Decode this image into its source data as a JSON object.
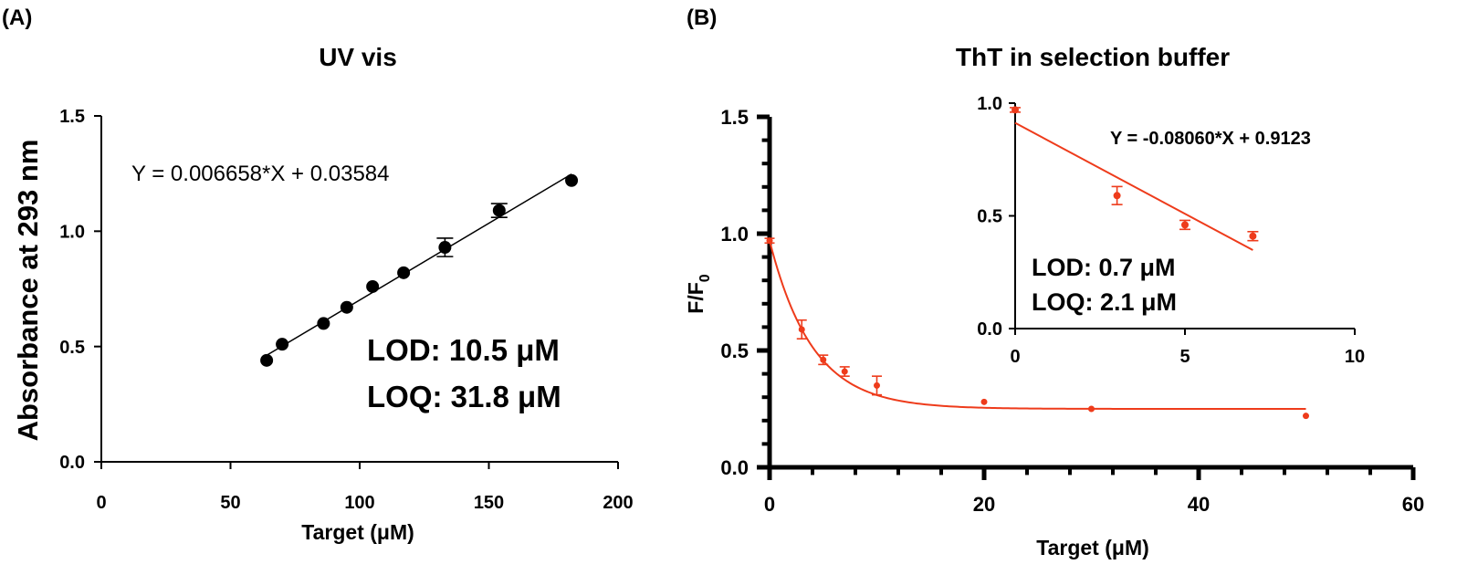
{
  "panels": {
    "a": {
      "label": "(A)",
      "equation": "Y = 0.006658*X + 0.03584",
      "lod": "LOD: 10.5 μM",
      "loq": "LOQ: 31.8 μM"
    },
    "b": {
      "label": "(B)",
      "inset_equation": "Y = -0.08060*X + 0.9123",
      "lod": "LOD: 0.7 μM",
      "loq": "LOQ: 2.1 μM"
    }
  },
  "colors": {
    "panel_a_series": "#000000",
    "panel_b_series": "#ee3b1b"
  },
  "chart_data": [
    {
      "id": "uv-vis",
      "type": "scatter",
      "title": "UV vis",
      "xlabel": "Target  (μM)",
      "ylabel": "Absorbance at 293 nm",
      "xlim": [
        0,
        200
      ],
      "ylim": [
        0,
        1.5
      ],
      "xticks": [
        "0",
        "50",
        "100",
        "150",
        "200"
      ],
      "yticks": [
        "0.0",
        "0.5",
        "1.0",
        "1.5"
      ],
      "points": [
        {
          "x": 64,
          "y": 0.44
        },
        {
          "x": 70,
          "y": 0.51
        },
        {
          "x": 86,
          "y": 0.6
        },
        {
          "x": 95,
          "y": 0.67
        },
        {
          "x": 105,
          "y": 0.76
        },
        {
          "x": 117,
          "y": 0.82
        },
        {
          "x": 133,
          "y": 0.93,
          "err": 0.04
        },
        {
          "x": 154,
          "y": 1.09,
          "err": 0.03
        },
        {
          "x": 182,
          "y": 1.22
        }
      ],
      "fit": {
        "type": "linear",
        "slope": 0.006658,
        "intercept": 0.03584,
        "x_range": [
          64,
          182
        ]
      },
      "grid": false
    },
    {
      "id": "tht-main",
      "type": "scatter",
      "title": "ThT in selection buffer",
      "xlabel": "Target (μM)",
      "ylabel": "F/F",
      "ylabel_subscript": "0",
      "xlim": [
        0,
        60
      ],
      "ylim": [
        0,
        1.5
      ],
      "xticks": [
        "0",
        "20",
        "40",
        "60"
      ],
      "yticks": [
        "0.0",
        "0.5",
        "1.0",
        "1.5"
      ],
      "points": [
        {
          "x": 0,
          "y": 0.97,
          "err": 0.01
        },
        {
          "x": 3,
          "y": 0.59,
          "err": 0.04
        },
        {
          "x": 5,
          "y": 0.46,
          "err": 0.02
        },
        {
          "x": 7,
          "y": 0.41,
          "err": 0.02
        },
        {
          "x": 10,
          "y": 0.35,
          "err": 0.04
        },
        {
          "x": 20,
          "y": 0.28
        },
        {
          "x": 30,
          "y": 0.25
        },
        {
          "x": 50,
          "y": 0.22
        }
      ],
      "fit": {
        "type": "one-phase-decay",
        "y0": 0.97,
        "plateau": 0.25,
        "k": 0.25,
        "x_range": [
          0,
          50
        ]
      },
      "grid": false
    },
    {
      "id": "tht-inset",
      "type": "scatter",
      "title": "",
      "xlim": [
        0,
        10
      ],
      "ylim": [
        0,
        1.0
      ],
      "xticks": [
        "0",
        "5",
        "10"
      ],
      "yticks": [
        "0.0",
        "0.5",
        "1.0"
      ],
      "points": [
        {
          "x": 0,
          "y": 0.97,
          "err": 0.01
        },
        {
          "x": 3,
          "y": 0.59,
          "err": 0.04
        },
        {
          "x": 5,
          "y": 0.46,
          "err": 0.02
        },
        {
          "x": 7,
          "y": 0.41,
          "err": 0.02
        }
      ],
      "fit": {
        "type": "linear",
        "slope": -0.0806,
        "intercept": 0.9123,
        "x_range": [
          0,
          7
        ]
      },
      "grid": false
    }
  ]
}
